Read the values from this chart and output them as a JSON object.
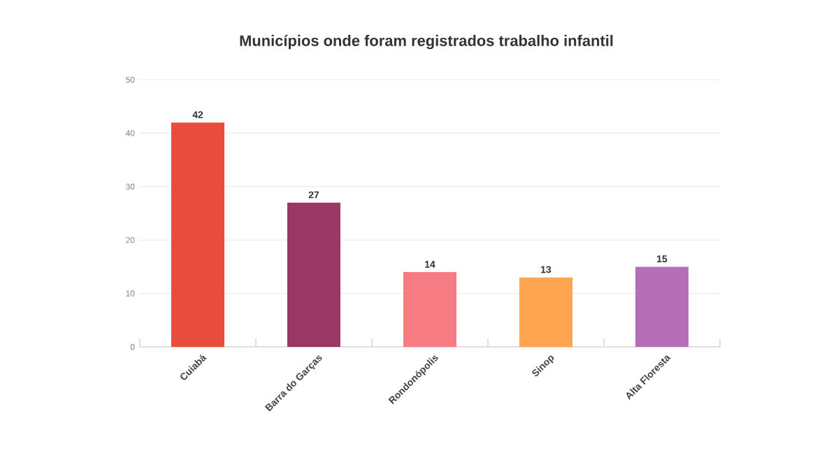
{
  "chart_data": {
    "type": "bar",
    "title": "Municípios onde foram registrados trabalho infantil",
    "categories": [
      "Cuiabá",
      "Barra do Garças",
      "Rondonópolis",
      "Sinop",
      "Alta Floresta"
    ],
    "values": [
      42,
      27,
      14,
      13,
      15
    ],
    "colors": [
      "#e94b3c",
      "#9b3765",
      "#f77b82",
      "#ffa54f",
      "#b56fb7"
    ],
    "ylim": [
      0,
      50
    ],
    "yticks": [
      0,
      10,
      20,
      30,
      40,
      50
    ],
    "grid": "y",
    "data_labels": true
  }
}
